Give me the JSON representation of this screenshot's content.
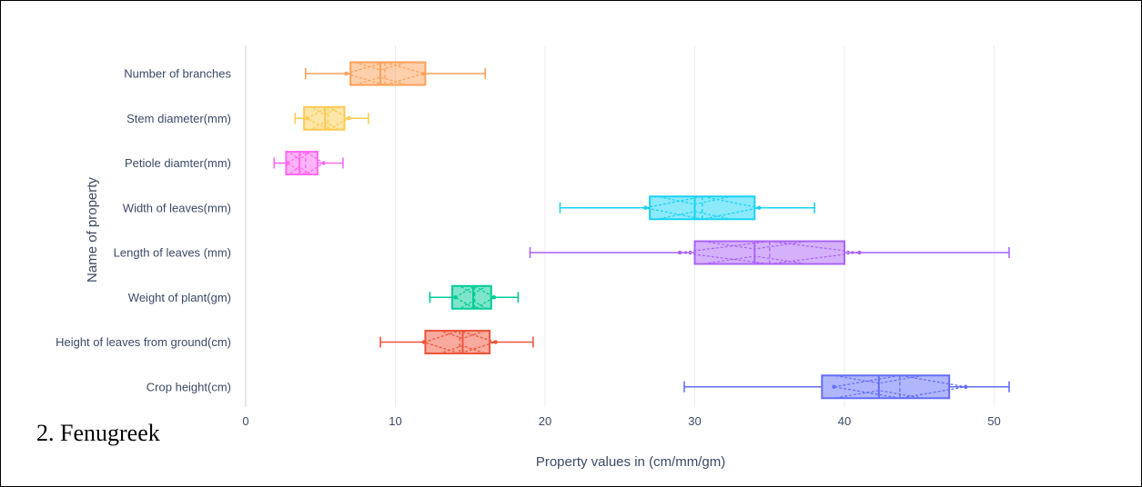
{
  "caption": "2. Fenugreek",
  "chart_data": {
    "type": "box",
    "orientation": "horizontal",
    "xlabel": "Property values in (cm/mm/gm)",
    "ylabel": "Name of property",
    "xlim": [
      0,
      54
    ],
    "xticks": [
      0,
      10,
      20,
      30,
      40,
      50
    ],
    "grid": true,
    "notched": true,
    "boxmean": "sd",
    "series": [
      {
        "name": "Number of branches",
        "color": "#FFA15A",
        "min": 4,
        "q1": 7,
        "median": 9,
        "q3": 12,
        "max": 16,
        "mean": 9.3,
        "sd": 2.6
      },
      {
        "name": "Stem diameter(mm)",
        "color": "#FECB52",
        "min": 3.3,
        "q1": 3.9,
        "median": 5.3,
        "q3": 6.6,
        "max": 8.2,
        "mean": 5.5,
        "sd": 1.4
      },
      {
        "name": "Petiole diamter(mm)",
        "color": "#FF6AF0",
        "min": 1.9,
        "q1": 2.7,
        "median": 3.6,
        "q3": 4.8,
        "max": 6.5,
        "mean": 4.0,
        "sd": 1.2
      },
      {
        "name": "Width of leaves(mm)",
        "color": "#19D3F3",
        "min": 21,
        "q1": 27,
        "median": 30,
        "q3": 34,
        "max": 38,
        "mean": 30.5,
        "sd": 3.8
      },
      {
        "name": "Length of leaves (mm)",
        "color": "#AB63FA",
        "min": 19,
        "q1": 30,
        "median": 34,
        "q3": 40,
        "max": 51,
        "mean": 35,
        "sd": 6
      },
      {
        "name": "Weight of plant(gm)",
        "color": "#00CC96",
        "min": 12.3,
        "q1": 13.8,
        "median": 15.2,
        "q3": 16.4,
        "max": 18.2,
        "mean": 15.3,
        "sd": 1.3
      },
      {
        "name": "Height of leaves from ground(cm)",
        "color": "#EF553B",
        "min": 9,
        "q1": 12,
        "median": 14.5,
        "q3": 16.3,
        "max": 19.2,
        "mean": 14.3,
        "sd": 2.4
      },
      {
        "name": "Crop height(cm)",
        "color": "#636EFA",
        "min": 29.3,
        "q1": 38.5,
        "median": 42.3,
        "q3": 47,
        "max": 51,
        "mean": 43.7,
        "sd": 4.4
      }
    ]
  }
}
